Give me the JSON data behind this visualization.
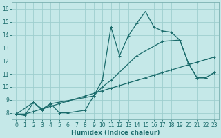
{
  "xlabel": "Humidex (Indice chaleur)",
  "bg_color": "#c5e8e8",
  "line_color": "#1a6b6b",
  "grid_color": "#9ecece",
  "spine_color": "#7ab0b0",
  "xlim": [
    -0.5,
    23.5
  ],
  "ylim": [
    7.5,
    16.5
  ],
  "yticks": [
    8,
    9,
    10,
    11,
    12,
    13,
    14,
    15,
    16
  ],
  "xticks": [
    0,
    1,
    2,
    3,
    4,
    5,
    6,
    7,
    8,
    9,
    10,
    11,
    12,
    13,
    14,
    15,
    16,
    17,
    18,
    19,
    20,
    21,
    22,
    23
  ],
  "line1_x": [
    0,
    1,
    2,
    3,
    4,
    5,
    6,
    7,
    8,
    9,
    10,
    11,
    12,
    13,
    14,
    15,
    16,
    17,
    18,
    19,
    20,
    21,
    22,
    23
  ],
  "line1_y": [
    7.9,
    7.8,
    8.8,
    8.3,
    8.7,
    8.0,
    8.0,
    8.1,
    8.2,
    9.3,
    10.5,
    14.6,
    12.4,
    13.9,
    14.9,
    15.8,
    14.6,
    14.3,
    14.2,
    13.6,
    11.8,
    10.7,
    10.7,
    11.1
  ],
  "line2_x": [
    0,
    2,
    3,
    4,
    9,
    10,
    11,
    14,
    17,
    19,
    20,
    21,
    22,
    23
  ],
  "line2_y": [
    7.9,
    8.8,
    8.2,
    8.7,
    9.3,
    10.0,
    10.5,
    12.4,
    13.5,
    13.6,
    11.8,
    10.7,
    10.7,
    11.1
  ],
  "line3_x": [
    0,
    1,
    2,
    3,
    4,
    5,
    6,
    7,
    8,
    9,
    10,
    11,
    12,
    13,
    14,
    15,
    16,
    17,
    18,
    19,
    20,
    21,
    22,
    23
  ],
  "line3_y": [
    7.9,
    7.9,
    8.1,
    8.3,
    8.5,
    8.7,
    8.9,
    9.1,
    9.3,
    9.5,
    9.7,
    9.9,
    10.1,
    10.3,
    10.5,
    10.7,
    10.9,
    11.1,
    11.3,
    11.5,
    11.7,
    11.9,
    12.1,
    12.3
  ],
  "tick_fontsize": 5.5,
  "xlabel_fontsize": 6.5
}
